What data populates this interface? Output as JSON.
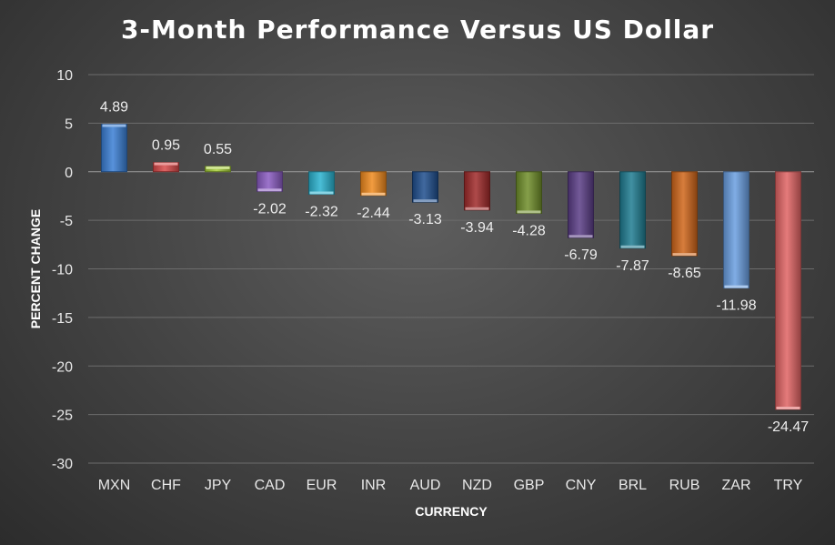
{
  "chart_data": {
    "type": "bar",
    "title": "3-Month Performance Versus US Dollar",
    "xlabel": "CURRENCY",
    "ylabel": "PERCENT CHANGE",
    "categories": [
      "MXN",
      "CHF",
      "JPY",
      "CAD",
      "EUR",
      "INR",
      "AUD",
      "NZD",
      "GBP",
      "CNY",
      "BRL",
      "RUB",
      "ZAR",
      "TRY"
    ],
    "values": [
      4.89,
      0.95,
      0.55,
      -2.02,
      -2.32,
      -2.44,
      -3.13,
      -3.94,
      -4.28,
      -6.79,
      -7.87,
      -8.65,
      -11.98,
      -24.47
    ],
    "data_labels": [
      "4.89",
      "0.95",
      "0.55",
      "-2.02",
      "-2.32",
      "-2.44",
      "-3.13",
      "-3.94",
      "-4.28",
      "-6.79",
      "-7.87",
      "-8.65",
      "-11.98",
      "-24.47"
    ],
    "ylim": [
      -30,
      10
    ],
    "yticks": [
      10,
      5,
      0,
      -5,
      -10,
      -15,
      -20,
      -25,
      -30
    ],
    "grid": true,
    "legend": "none",
    "colors": [
      "#3a7fd5",
      "#d94a4a",
      "#a7cf3a",
      "#8a5cc2",
      "#2ab3d0",
      "#f08a1e",
      "#1f4f8e",
      "#a02a2a",
      "#6f8e2a",
      "#5a3d86",
      "#1f7c91",
      "#d0661a",
      "#6a9ee0",
      "#e06464"
    ]
  }
}
